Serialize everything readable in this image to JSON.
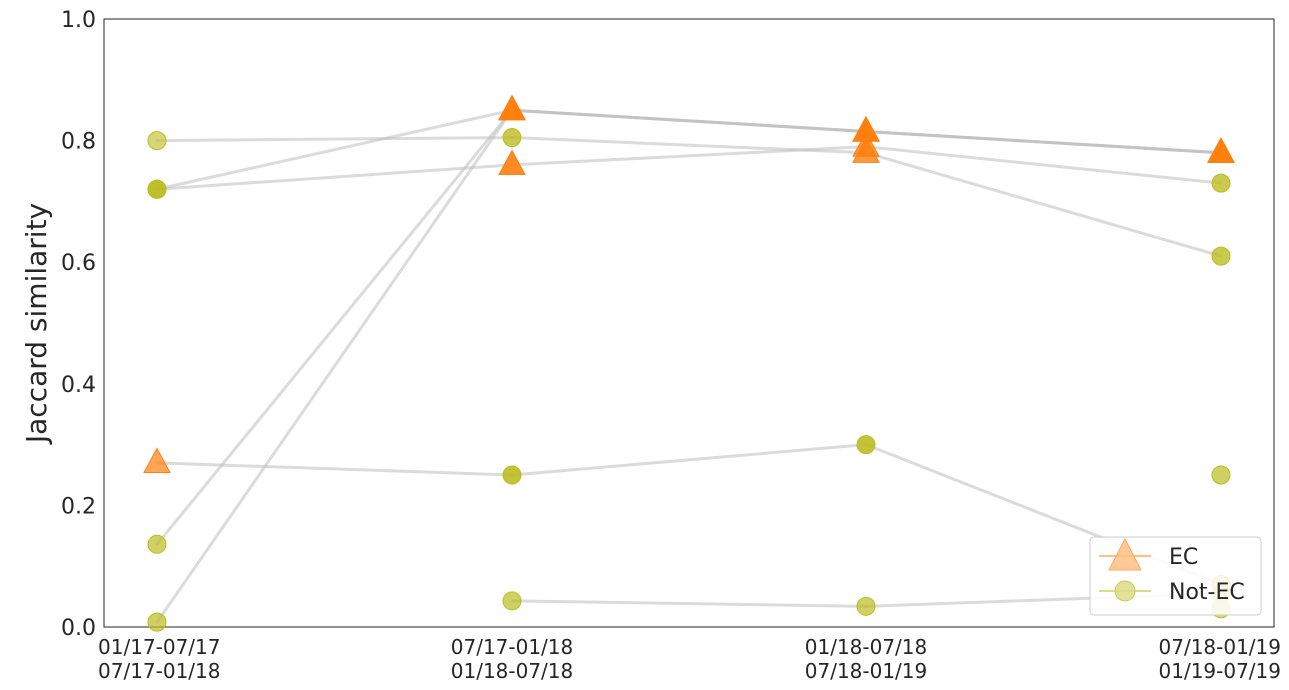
{
  "chart_data": {
    "type": "line",
    "ylabel": "Jaccard similarity",
    "ylim": [
      0,
      1.0
    ],
    "yticks": [
      "0.0",
      "0.2",
      "0.4",
      "0.6",
      "0.8",
      "1.0"
    ],
    "categories": [
      [
        "01/17-07/17",
        "07/17-01/18"
      ],
      [
        "07/17-01/18",
        "01/18-07/18"
      ],
      [
        "01/18-07/18",
        "07/18-01/19"
      ],
      [
        "07/18-01/19",
        "01/19-07/19"
      ]
    ],
    "legend": {
      "placement": "lower-right",
      "entries": [
        {
          "label": "EC",
          "marker": "triangle",
          "color": "#ff7f0e"
        },
        {
          "label": "Not-EC",
          "marker": "circle",
          "color": "#bcbd22"
        }
      ]
    },
    "line_color": "#bdbdbd",
    "colors": {
      "EC": "#ff7f0e",
      "Not-EC": "#bcbd22"
    },
    "series": [
      {
        "values": [
          0.72,
          0.76,
          0.79,
          0.73
        ],
        "markers": [
          "Not-EC",
          "EC",
          "EC",
          "Not-EC"
        ],
        "opacity": [
          0.9,
          0.9,
          0.8,
          0.8
        ]
      },
      {
        "values": [
          0.8,
          0.805,
          0.78,
          0.61
        ],
        "markers": [
          "Not-EC",
          "Not-EC",
          "EC",
          "Not-EC"
        ],
        "opacity": [
          0.6,
          0.8,
          0.8,
          0.8
        ]
      },
      {
        "values": [
          0.72,
          0.85,
          0.815,
          0.78
        ],
        "markers": [
          "Not-EC",
          "EC",
          "EC",
          "EC"
        ],
        "opacity": [
          0.6,
          0.95,
          0.95,
          0.95
        ]
      },
      {
        "values": [
          0.136,
          0.85,
          0.815,
          0.78
        ],
        "markers": [
          "Not-EC",
          "EC",
          "EC",
          "EC"
        ],
        "opacity": [
          0.7,
          0.95,
          0.95,
          0.95
        ]
      },
      {
        "values": [
          0.008,
          0.85,
          0.815,
          0.78
        ],
        "markers": [
          "Not-EC",
          "EC",
          "EC",
          "EC"
        ],
        "opacity": [
          0.7,
          0.95,
          0.95,
          0.95
        ]
      },
      {
        "values": [
          0.27,
          0.25,
          0.3,
          0.07
        ],
        "markers": [
          "EC",
          "Not-EC",
          "Not-EC",
          "Not-EC"
        ],
        "opacity": [
          0.7,
          0.9,
          0.9,
          0.6
        ]
      },
      {
        "values": [
          null,
          0.043,
          0.034,
          0.055
        ],
        "markers": [
          "",
          "Not-EC",
          "Not-EC",
          "Not-EC"
        ],
        "opacity": [
          0,
          0.7,
          0.7,
          0.6
        ]
      },
      {
        "values": [
          null,
          null,
          null,
          0.25
        ],
        "markers": [
          "",
          "",
          "",
          "Not-EC"
        ],
        "opacity": [
          0,
          0,
          0,
          0.7
        ]
      },
      {
        "values": [
          null,
          null,
          null,
          0.03
        ],
        "markers": [
          "",
          "",
          "",
          "Not-EC"
        ],
        "opacity": [
          0,
          0,
          0,
          0.6
        ]
      }
    ]
  }
}
